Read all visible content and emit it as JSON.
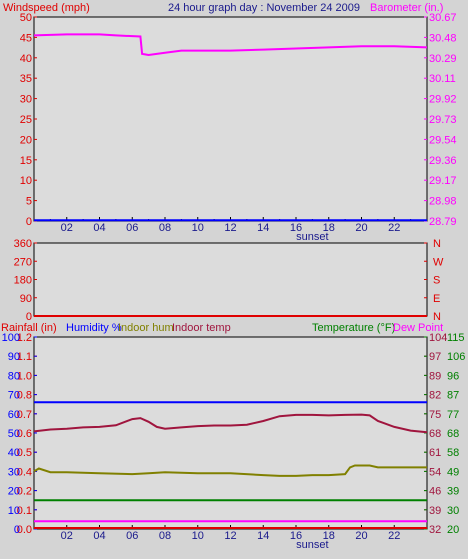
{
  "colors": {
    "background": "#d4d4d4",
    "plot_bg": "#dcdcdc",
    "red": "#e00000",
    "magenta": "#ff00ff",
    "navy": "#1a1a8c",
    "blue": "#0000ff",
    "olive": "#808000",
    "maroon": "#a0153e",
    "green": "#008000"
  },
  "chart_data": [
    {
      "type": "line",
      "title": "24 hour graph day : November 24 2009",
      "y_left_label": "Windspeed (mph)",
      "y_right_label": "Barometer (in.)",
      "x_ticks": [
        "02",
        "04",
        "06",
        "08",
        "10",
        "12",
        "14",
        "16",
        "18",
        "20",
        "22"
      ],
      "x_annotation": "sunset",
      "y_left_ticks": [
        "0",
        "5",
        "10",
        "15",
        "20",
        "25",
        "30",
        "35",
        "40",
        "45",
        "50"
      ],
      "y_left_range": [
        0,
        50
      ],
      "y_right_ticks": [
        "28.79",
        "28.98",
        "29.17",
        "29.36",
        "29.54",
        "29.73",
        "29.92",
        "30.11",
        "30.29",
        "30.48",
        "30.67"
      ],
      "y_right_range": [
        28.79,
        30.67
      ],
      "series": [
        {
          "axis": "right",
          "color": "magenta",
          "x": [
            0,
            2,
            4,
            5,
            6.5,
            6.6,
            7,
            8,
            9,
            10,
            12,
            14,
            16,
            18,
            20,
            22,
            24
          ],
          "y": [
            30.5,
            30.51,
            30.51,
            30.5,
            30.49,
            30.33,
            30.32,
            30.34,
            30.36,
            30.36,
            30.36,
            30.37,
            30.38,
            30.39,
            30.4,
            30.4,
            30.39
          ]
        },
        {
          "axis": "left",
          "color": "blue",
          "x": [
            0,
            24
          ],
          "y": [
            0.2,
            0.2
          ]
        }
      ]
    },
    {
      "type": "line",
      "y_left_ticks": [
        "0",
        "90",
        "180",
        "270",
        "360"
      ],
      "y_left_range": [
        0,
        360
      ],
      "y_right_ticks": [
        "N",
        "E",
        "S",
        "W",
        "N"
      ],
      "series": [
        {
          "axis": "left",
          "color": "red",
          "x": [
            0,
            24
          ],
          "y": [
            0,
            0
          ]
        }
      ]
    },
    {
      "type": "line",
      "labels": {
        "rainfall": "Rainfall (in)",
        "humidity": "Humidity %",
        "indoor_hum": "Indoor hum",
        "indoor_temp": "Indoor temp",
        "temperature": "Temperature (°F)",
        "dew_point": "Dew Point"
      },
      "x_ticks": [
        "02",
        "04",
        "06",
        "08",
        "10",
        "12",
        "14",
        "16",
        "18",
        "20",
        "22"
      ],
      "x_annotation": "sunset",
      "y_rain_ticks": [
        "0.0",
        "0.1",
        "0.2",
        "0.4",
        "0.5",
        "0.6",
        "0.7",
        "0.8",
        "1.0",
        "1.1",
        "1.2"
      ],
      "y_humidity_ticks": [
        "0",
        "10",
        "20",
        "30",
        "40",
        "50",
        "60",
        "70",
        "80",
        "90",
        "100"
      ],
      "y_humidity_range": [
        0,
        100
      ],
      "y_temp_ticks": [
        "32",
        "39",
        "46",
        "54",
        "61",
        "68",
        "75",
        "82",
        "89",
        "97",
        "104"
      ],
      "y_temp_range": [
        32,
        104
      ],
      "y_dew_ticks": [
        "20",
        "30",
        "39",
        "49",
        "58",
        "68",
        "77",
        "87",
        "96",
        "106",
        "115"
      ],
      "series": [
        {
          "axis": "humidity",
          "color": "blue",
          "x": [
            0,
            24
          ],
          "y": [
            66,
            66
          ]
        },
        {
          "axis": "temp",
          "color": "maroon",
          "x": [
            0,
            1,
            2,
            3,
            4,
            5,
            6,
            6.5,
            7,
            7.5,
            8,
            9,
            10,
            11,
            12,
            13,
            14,
            15,
            16,
            17,
            18,
            19,
            20,
            20.5,
            21,
            22,
            23,
            24
          ],
          "y": [
            68.6,
            69.3,
            69.6,
            70.1,
            70.3,
            70.9,
            73.2,
            73.6,
            72.2,
            70.3,
            69.6,
            70.1,
            70.6,
            70.8,
            70.8,
            71.1,
            72.5,
            74.3,
            74.8,
            74.8,
            74.6,
            74.8,
            74.9,
            74.6,
            72.5,
            70.3,
            68.9,
            68.3
          ]
        },
        {
          "axis": "temp",
          "color": "olive",
          "x": [
            0,
            0.3,
            1,
            2,
            4,
            6,
            7,
            8,
            10,
            12,
            14,
            15,
            16,
            17,
            18,
            19,
            19.3,
            19.6,
            20.5,
            21,
            22,
            23,
            24
          ],
          "y": [
            53.6,
            54.7,
            53.3,
            53.3,
            52.9,
            52.6,
            52.9,
            53.3,
            52.9,
            52.9,
            52.2,
            51.9,
            51.9,
            52.2,
            52.2,
            52.6,
            55.1,
            55.8,
            55.8,
            55.1,
            55.1,
            55.1,
            55.1
          ]
        },
        {
          "axis": "humidity",
          "color": "green",
          "x": [
            0,
            24
          ],
          "y": [
            15,
            15
          ]
        },
        {
          "axis": "humidity",
          "color": "magenta",
          "x": [
            0,
            24
          ],
          "y": [
            4,
            4
          ]
        },
        {
          "axis": "humidity",
          "color": "red",
          "x": [
            0,
            24
          ],
          "y": [
            0.5,
            0.5
          ]
        }
      ]
    }
  ]
}
